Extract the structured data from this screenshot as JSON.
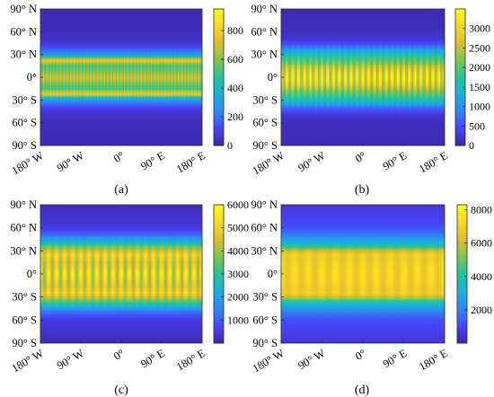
{
  "colors": {
    "colormap": [
      "#3e26a8",
      "#4743f8",
      "#2f87f4",
      "#18b0dc",
      "#22c39c",
      "#7ac64f",
      "#dcbd2d",
      "#f9d725",
      "#f9fb15"
    ]
  },
  "chart_data": [
    {
      "type": "heatmap",
      "panel_label": "(a)",
      "x_tick_labels": [
        "180° W",
        "90° W",
        "0°",
        "90° E",
        "180° E"
      ],
      "y_tick_labels": [
        "90° N",
        "60° N",
        "30° N",
        "0°",
        "30° S",
        "60° S",
        "90° S"
      ],
      "xlim": [
        -180,
        180
      ],
      "ylim": [
        -90,
        90
      ],
      "colorbar": {
        "min": 0,
        "max": 950,
        "ticks": [
          0,
          200,
          400,
          600,
          800
        ],
        "tick_labels": [
          "0",
          "200",
          "400",
          "600",
          "800"
        ]
      },
      "latitude_profile": {
        "latitude": [
          90,
          60,
          50,
          40,
          32,
          28,
          24,
          22,
          20,
          15,
          10,
          5,
          0,
          -5,
          -10,
          -15,
          -20,
          -22,
          -24,
          -28,
          -32,
          -40,
          -50,
          -60,
          -90
        ],
        "value": [
          15,
          25,
          40,
          110,
          250,
          340,
          640,
          780,
          700,
          520,
          560,
          640,
          690,
          640,
          560,
          520,
          700,
          780,
          640,
          340,
          250,
          110,
          40,
          25,
          15
        ]
      },
      "longitudinal_modulation": {
        "cycles_over_360_deg": 48,
        "relative_amplitude": 0.12
      }
    },
    {
      "type": "heatmap",
      "panel_label": "(b)",
      "x_tick_labels": [
        "180° W",
        "90° W",
        "0°",
        "90° E",
        "180° E"
      ],
      "y_tick_labels": [
        "90° N",
        "60° N",
        "30° N",
        "0°",
        "30° S",
        "60° S",
        "90° S"
      ],
      "xlim": [
        -180,
        180
      ],
      "ylim": [
        -90,
        90
      ],
      "colorbar": {
        "min": 0,
        "max": 3500,
        "ticks": [
          0,
          500,
          1000,
          1500,
          2000,
          2500,
          3000
        ],
        "tick_labels": [
          "0",
          "500",
          "1000",
          "1500",
          "2000",
          "2500",
          "3000"
        ]
      },
      "latitude_profile": {
        "latitude": [
          90,
          60,
          50,
          40,
          35,
          30,
          25,
          20,
          15,
          10,
          5,
          0,
          -5,
          -10,
          -15,
          -20,
          -25,
          -30,
          -35,
          -40,
          -50,
          -60,
          -90
        ],
        "value": [
          60,
          120,
          250,
          700,
          1200,
          1600,
          1850,
          2100,
          2400,
          2700,
          2850,
          2900,
          2850,
          2700,
          2400,
          2100,
          1850,
          1600,
          1200,
          700,
          250,
          120,
          60
        ]
      },
      "longitudinal_modulation": {
        "cycles_over_360_deg": 28,
        "relative_amplitude": 0.22
      }
    },
    {
      "type": "heatmap",
      "panel_label": "(c)",
      "x_tick_labels": [
        "180° W",
        "90° W",
        "0°",
        "90° E",
        "180° E"
      ],
      "y_tick_labels": [
        "90° N",
        "60° N",
        "30° N",
        "0°",
        "30° S",
        "60° S",
        "90° S"
      ],
      "xlim": [
        -180,
        180
      ],
      "ylim": [
        -90,
        90
      ],
      "colorbar": {
        "min": 0,
        "max": 6000,
        "ticks": [
          1000,
          2000,
          3000,
          4000,
          5000,
          6000
        ],
        "tick_labels": [
          "1000",
          "2000",
          "3000",
          "4000",
          "5000",
          "6000"
        ]
      },
      "latitude_profile": {
        "latitude": [
          90,
          60,
          50,
          45,
          40,
          35,
          30,
          25,
          20,
          15,
          10,
          5,
          0,
          -5,
          -10,
          -15,
          -20,
          -25,
          -30,
          -35,
          -40,
          -45,
          -50,
          -60,
          -90
        ],
        "value": [
          150,
          500,
          1200,
          1900,
          2700,
          3600,
          4400,
          5000,
          4700,
          4500,
          4600,
          4800,
          4900,
          4800,
          4600,
          4500,
          4700,
          5000,
          4400,
          3600,
          2700,
          1900,
          1200,
          500,
          150
        ]
      },
      "longitudinal_modulation": {
        "cycles_over_360_deg": 20,
        "relative_amplitude": 0.2
      }
    },
    {
      "type": "heatmap",
      "panel_label": "(d)",
      "x_tick_labels": [
        "180° W",
        "90° W",
        "0°",
        "90° E",
        "180° E"
      ],
      "y_tick_labels": [
        "90° N",
        "60° N",
        "30° N",
        "0°",
        "30° S",
        "60° S",
        "90° S"
      ],
      "xlim": [
        -180,
        180
      ],
      "ylim": [
        -90,
        90
      ],
      "colorbar": {
        "min": 0,
        "max": 8300,
        "ticks": [
          2000,
          4000,
          6000,
          8000
        ],
        "tick_labels": [
          "2000",
          "4000",
          "6000",
          "8000"
        ]
      },
      "latitude_profile": {
        "latitude": [
          90,
          60,
          50,
          45,
          40,
          35,
          30,
          25,
          20,
          15,
          10,
          5,
          0,
          -5,
          -10,
          -15,
          -20,
          -25,
          -30,
          -35,
          -40,
          -45,
          -50,
          -60,
          -90
        ],
        "value": [
          600,
          1200,
          2000,
          2600,
          3300,
          4300,
          6200,
          6900,
          6800,
          6900,
          7000,
          7100,
          7100,
          7100,
          7000,
          6900,
          6800,
          6900,
          6200,
          4300,
          3300,
          2600,
          2000,
          1200,
          600
        ]
      },
      "longitudinal_modulation": {
        "cycles_over_360_deg": 12,
        "relative_amplitude": 0.08
      }
    }
  ]
}
